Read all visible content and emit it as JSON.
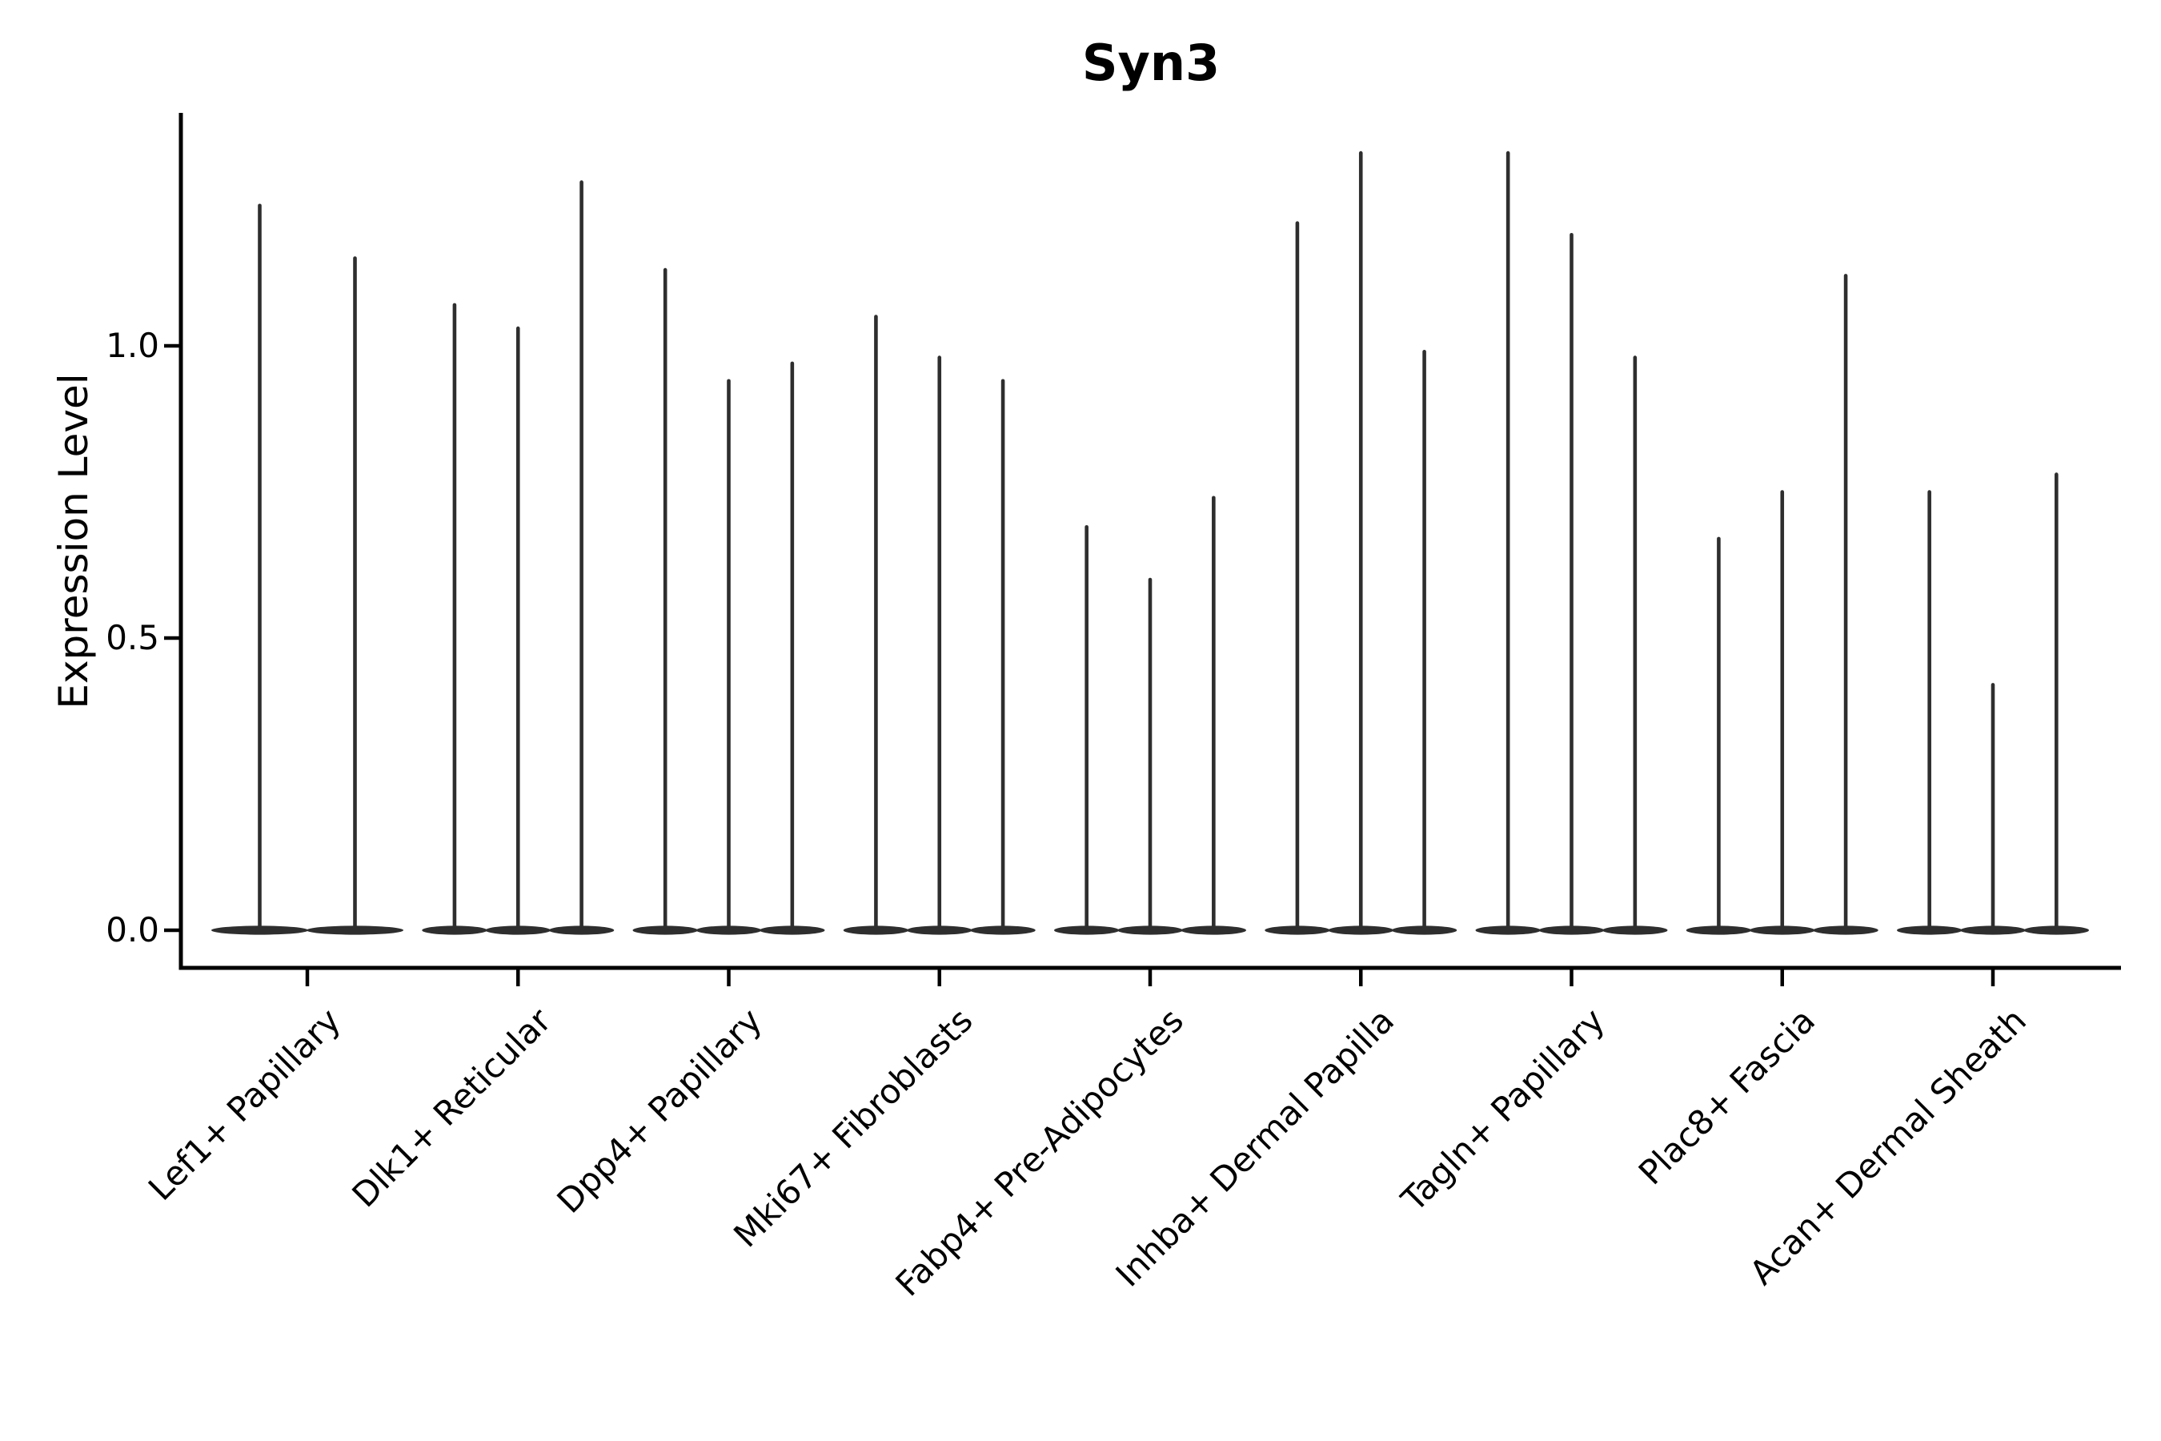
{
  "title": "Syn3",
  "ylabel": "Expression Level",
  "colors": {
    "violin": "#2e2e2e",
    "axis": "#000000",
    "background": "#ffffff"
  },
  "chart_data": {
    "type": "violin",
    "title": "Syn3",
    "xlabel": "",
    "ylabel": "Expression Level",
    "ylim": [
      -0.066,
      1.4
    ],
    "yticks": [
      {
        "value": 0.0,
        "label": "0.0"
      },
      {
        "value": 0.5,
        "label": "0.5"
      },
      {
        "value": 1.0,
        "label": "1.0"
      }
    ],
    "grid": false,
    "legend": "none",
    "x_tick_rotation_deg": 45,
    "description": "Single-cell expression violin plot; each violin is a flat density mass at 0 with a thin spike up to the maximum expression value.",
    "categories": [
      "Lef1+ Papillary",
      "Dlk1+ Reticular",
      "Dpp4+ Papillary",
      "Mki67+ Fibroblasts",
      "Fabp4+ Pre-Adipocytes",
      "Inhba+ Dermal Papilla",
      "Tagln+ Papillary",
      "Plac8+ Fascia",
      "Acan+ Dermal Sheath"
    ],
    "violins": [
      {
        "category": "Lef1+ Papillary",
        "max_expression": [
          1.24,
          1.15
        ]
      },
      {
        "category": "Dlk1+ Reticular",
        "max_expression": [
          1.07,
          1.03,
          1.28
        ]
      },
      {
        "category": "Dpp4+ Papillary",
        "max_expression": [
          1.13,
          0.94,
          0.97
        ]
      },
      {
        "category": "Mki67+ Fibroblasts",
        "max_expression": [
          1.05,
          0.98,
          0.94
        ]
      },
      {
        "category": "Fabp4+ Pre-Adipocytes",
        "max_expression": [
          0.69,
          0.6,
          0.74
        ]
      },
      {
        "category": "Inhba+ Dermal Papilla",
        "max_expression": [
          1.21,
          1.33,
          0.99
        ]
      },
      {
        "category": "Tagln+ Papillary",
        "max_expression": [
          1.33,
          1.19,
          0.98
        ]
      },
      {
        "category": "Plac8+ Fascia",
        "max_expression": [
          0.67,
          0.75,
          1.12
        ]
      },
      {
        "category": "Acan+ Dermal Sheath",
        "max_expression": [
          0.75,
          0.42,
          0.78
        ]
      }
    ]
  }
}
